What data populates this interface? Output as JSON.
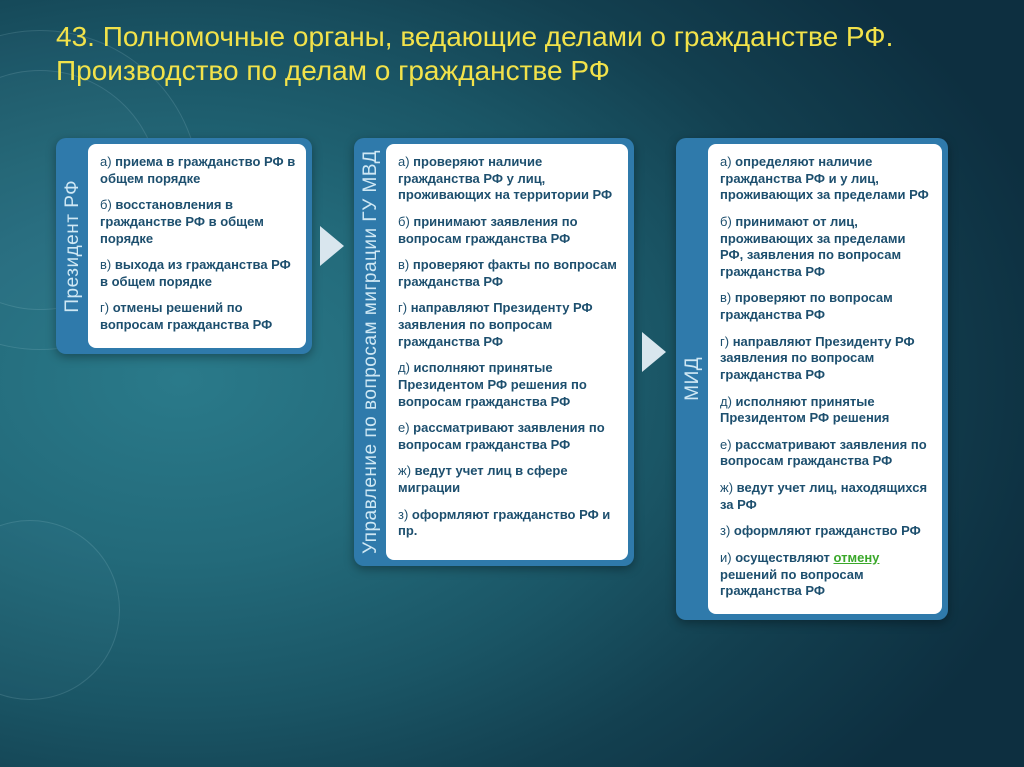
{
  "title": "43. Полномочные органы, ведающие делами о гражданстве РФ. Производство по делам о гражданстве РФ",
  "colors": {
    "title": "#f2e24a",
    "card_bg": "#2f7aab",
    "inner_bg": "#ffffff",
    "text": "#1d4f6e",
    "vlabel": "#cfe8f4",
    "link": "#3aa82a"
  },
  "cards": [
    {
      "label": "Президент РФ",
      "items": [
        {
          "letter": "а)",
          "text": " приема в гражданство РФ в общем порядке"
        },
        {
          "letter": "б)",
          "text": " восстановления в гражданстве РФ в общем порядке"
        },
        {
          "letter": "в)",
          "text": " выхода из гражданства РФ в общем порядке"
        },
        {
          "letter": "г)",
          "text": " отмены решений по вопросам гражданства РФ"
        }
      ]
    },
    {
      "label": "Управление по вопросам миграции ГУ МВД",
      "items": [
        {
          "letter": "а)",
          "text": "  проверяют наличие гражданства РФ у лиц, проживающих на территории РФ"
        },
        {
          "letter": "б)",
          "text": " принимают заявления по вопросам гражданства РФ"
        },
        {
          "letter": "в)",
          "text": " проверяют факты по вопросам гражданства РФ"
        },
        {
          "letter": "г)",
          "text": " направляют Президенту РФ заявления по вопросам гражданства РФ"
        },
        {
          "letter": "д)",
          "text": " исполняют принятые Президентом РФ решения по вопросам гражданства РФ"
        },
        {
          "letter": "е)",
          "text": " рассматривают заявления по вопросам гражданства РФ"
        },
        {
          "letter": "ж)",
          "text": " ведут учет лиц в сфере миграции"
        },
        {
          "letter": "з)",
          "text": " оформляют гражданство РФ и пр."
        }
      ]
    },
    {
      "label": "МИД",
      "items": [
        {
          "letter": "а)",
          "text": " определяют наличие гражданства РФ и у лиц, проживающих за пределами РФ"
        },
        {
          "letter": "б)",
          "text": " принимают от лиц, проживающих за пределами РФ, заявления по вопросам гражданства РФ"
        },
        {
          "letter": "в)",
          "text": " проверяют по вопросам гражданства РФ"
        },
        {
          "letter": "г)",
          "text": " направляют Президенту РФ заявления по вопросам гражданства РФ"
        },
        {
          "letter": "д)",
          "text": " исполняют принятые Президентом РФ решения"
        },
        {
          "letter": "е)",
          "text": " рассматривают заявления по вопросам гражданства РФ"
        },
        {
          "letter": "ж)",
          "text": " ведут учет лиц, находящихся за РФ"
        },
        {
          "letter": "з)",
          "text": " оформляют гражданство РФ"
        },
        {
          "letter": "и)",
          "text": " осуществляют ",
          "link": "отмену",
          "tail": " решений по вопросам гражданства РФ"
        }
      ]
    }
  ]
}
